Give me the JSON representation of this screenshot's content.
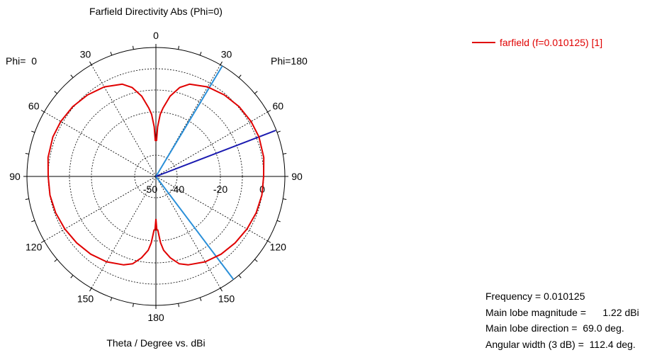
{
  "chart_data": {
    "type": "polar",
    "title": "Farfield Directivity Abs (Phi=0)",
    "xlabel": "Theta / Degree vs. dBi",
    "phi_left_label": "Phi=  0",
    "phi_right_label": "Phi=180",
    "angle_ticks": [
      "0",
      "30",
      "60",
      "90",
      "120",
      "150",
      "180",
      "150",
      "120",
      "90",
      "60",
      "30"
    ],
    "radial_ticks": [
      "-50",
      "-40",
      "-20",
      "0"
    ],
    "radial_range_db": [
      -50,
      10
    ],
    "series": [
      {
        "name": "farfield (f=0.010125) [1]",
        "color": "#e00000",
        "theta_deg": [
          0,
          1,
          2,
          4,
          6,
          10,
          15,
          20,
          30,
          40,
          50,
          60,
          69,
          80,
          90,
          100,
          110,
          120,
          130,
          140,
          150,
          160,
          165,
          170,
          174,
          176,
          178,
          179,
          180
        ],
        "directivity_dbi": [
          -33,
          -33,
          -26.8,
          -21,
          -18,
          -12.1,
          -7.2,
          -4.4,
          -2,
          -0.6,
          0.4,
          1,
          1.22,
          0.85,
          0,
          -0.05,
          -0.5,
          -1.2,
          -2,
          -2.9,
          -4.2,
          -6.3,
          -8,
          -11.6,
          -15.5,
          -19,
          -25,
          -25,
          -30
        ]
      }
    ],
    "markers": {
      "main_lobe_direction_deg": 69.0,
      "main_lobe_color": "#1a1ab0",
      "beamwidth_edges_deg": [
        31,
        143
      ],
      "beamwidth_color": "#2a8fd8"
    }
  },
  "legend": {
    "label": "farfield (f=0.010125) [1]"
  },
  "info": {
    "frequency_label": "Frequency = ",
    "frequency_value": "0.010125",
    "magnitude_label": "Main lobe magnitude = ",
    "magnitude_value": "     1.22 dBi",
    "direction_label": "Main lobe direction = ",
    "direction_value": " 69.0 deg.",
    "width_label": "Angular width (3 dB) = ",
    "width_value": " 112.4 deg."
  },
  "colors": {
    "curve": "#e00000",
    "main_lobe": "#1a1ab0",
    "beamwidth": "#2a8fd8",
    "text": "#000000"
  }
}
